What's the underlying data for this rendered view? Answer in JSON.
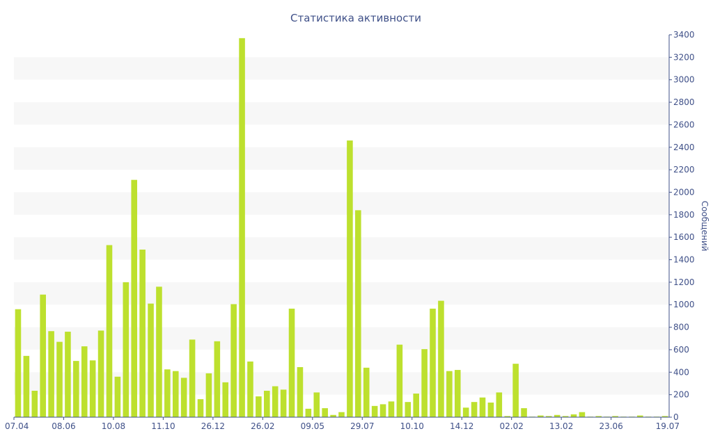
{
  "chart_data": {
    "type": "bar",
    "title": "Статистика активности",
    "xlabel": "",
    "ylabel": "Сообщений",
    "ylim": [
      0,
      3400
    ],
    "y_ticks": [
      0,
      200,
      400,
      600,
      800,
      1000,
      1200,
      1400,
      1600,
      1800,
      2000,
      2200,
      2400,
      2600,
      2800,
      3000,
      3200,
      3400
    ],
    "y_axis_side": "right",
    "grid": "alternating horizontal bands",
    "legend": "none",
    "bar_color": "#bde02e",
    "x_tick_labels": [
      {
        "label": "07.04",
        "index": 0
      },
      {
        "label": "08.06",
        "index": 6
      },
      {
        "label": "10.08",
        "index": 12
      },
      {
        "label": "11.10",
        "index": 18
      },
      {
        "label": "26.12",
        "index": 24
      },
      {
        "label": "26.02",
        "index": 30
      },
      {
        "label": "09.05",
        "index": 36
      },
      {
        "label": "29.07",
        "index": 42
      },
      {
        "label": "10.10",
        "index": 48
      },
      {
        "label": "14.12",
        "index": 54
      },
      {
        "label": "02.02",
        "index": 60
      },
      {
        "label": "13.02",
        "index": 66
      },
      {
        "label": "23.06",
        "index": 72
      },
      {
        "label": "19.07",
        "index": 78
      }
    ],
    "values": [
      960,
      545,
      235,
      1090,
      765,
      670,
      760,
      500,
      630,
      505,
      770,
      1530,
      360,
      1200,
      2110,
      1490,
      1010,
      1160,
      425,
      410,
      350,
      690,
      160,
      390,
      675,
      310,
      1005,
      3370,
      495,
      185,
      235,
      275,
      245,
      965,
      445,
      75,
      220,
      80,
      20,
      45,
      2460,
      1840,
      440,
      100,
      115,
      140,
      645,
      135,
      210,
      605,
      965,
      1035,
      410,
      420,
      85,
      135,
      175,
      130,
      220,
      10,
      475,
      80,
      5,
      15,
      10,
      20,
      10,
      25,
      45,
      5,
      10,
      5,
      10,
      5,
      5,
      15,
      5,
      5,
      10
    ]
  }
}
